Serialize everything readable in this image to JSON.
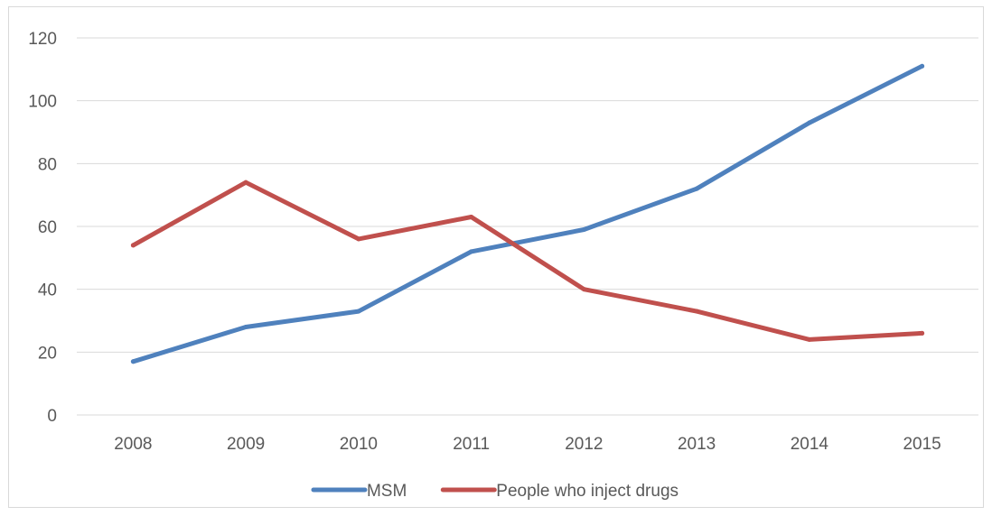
{
  "chart_data": {
    "type": "line",
    "categories": [
      "2008",
      "2009",
      "2010",
      "2011",
      "2012",
      "2013",
      "2014",
      "2015"
    ],
    "series": [
      {
        "name": "MSM",
        "color": "#4f81bd",
        "values": [
          17,
          28,
          33,
          52,
          59,
          72,
          93,
          111
        ]
      },
      {
        "name": "People who inject drugs",
        "color": "#c0504d",
        "values": [
          54,
          74,
          56,
          63,
          40,
          33,
          24,
          26
        ]
      }
    ],
    "title": "",
    "xlabel": "",
    "ylabel": "",
    "ylim": [
      0,
      120
    ],
    "yticks": [
      "0",
      "20",
      "40",
      "60",
      "80",
      "100",
      "120"
    ],
    "grid": true,
    "legend": "bottom-center",
    "colors": {
      "grid": "#d9d9d9",
      "text": "#595959"
    }
  }
}
